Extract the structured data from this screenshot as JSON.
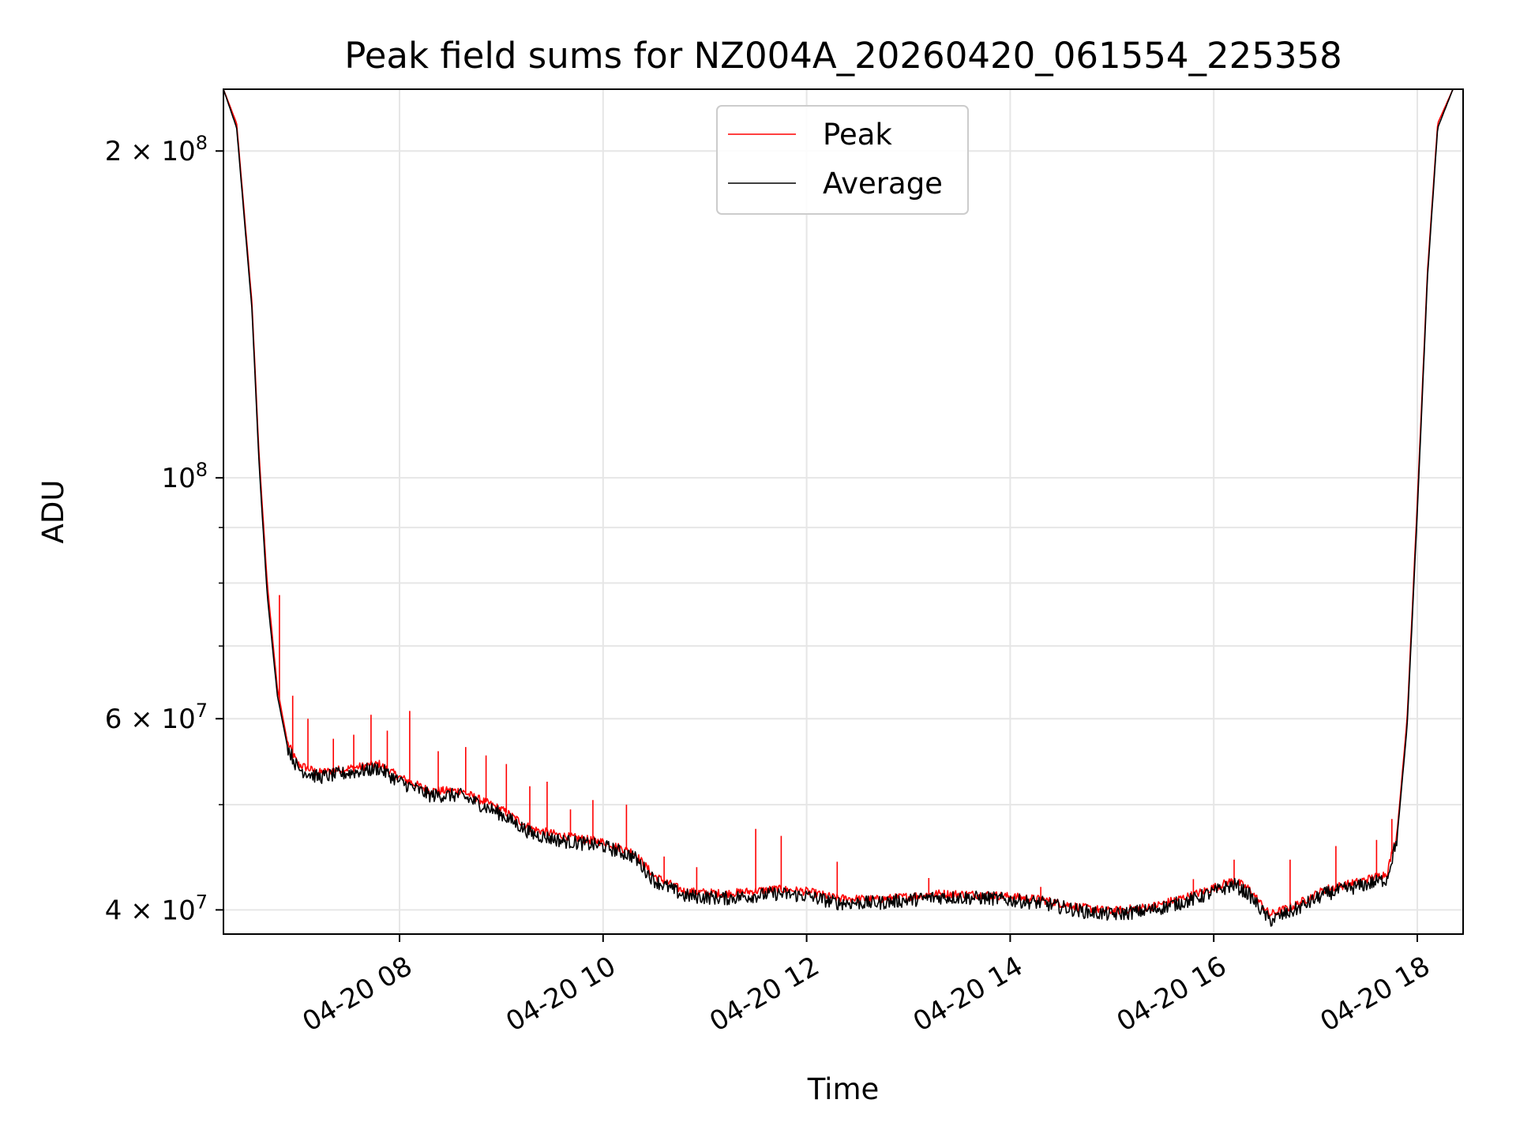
{
  "chart_data": {
    "type": "line",
    "title": "Peak field sums for NZ004A_20260420_061554_225358",
    "xlabel": "Time",
    "ylabel": "ADU",
    "yscale": "log",
    "grid": true,
    "legend_position": "top-center",
    "xlim_hours": [
      6.27,
      18.45
    ],
    "ylim": [
      38000000,
      228000000
    ],
    "x_ticks": [
      {
        "hour": 8,
        "label": "04-20 08"
      },
      {
        "hour": 10,
        "label": "04-20 10"
      },
      {
        "hour": 12,
        "label": "04-20 12"
      },
      {
        "hour": 14,
        "label": "04-20 14"
      },
      {
        "hour": 16,
        "label": "04-20 16"
      },
      {
        "hour": 18,
        "label": "04-20 18"
      }
    ],
    "y_major_ticks": [
      {
        "value": 40000000,
        "mantissa": "4",
        "exponent": "7"
      },
      {
        "value": 60000000,
        "mantissa": "6",
        "exponent": "7"
      },
      {
        "value": 100000000,
        "mantissa": "",
        "exponent": "8"
      },
      {
        "value": 200000000,
        "mantissa": "2",
        "exponent": "8"
      }
    ],
    "y_minor_ticks": [
      50000000,
      70000000,
      80000000,
      90000000
    ],
    "series": [
      {
        "name": "Peak",
        "color": "#ff0000",
        "points": [
          [
            6.27,
            228000000
          ],
          [
            6.4,
            212000000
          ],
          [
            6.55,
            145000000
          ],
          [
            6.62,
            105000000
          ],
          [
            6.7,
            80000000
          ],
          [
            6.8,
            64000000
          ],
          [
            6.9,
            57000000
          ],
          [
            7.0,
            54500000
          ],
          [
            7.2,
            53500000
          ],
          [
            7.5,
            54000000
          ],
          [
            7.8,
            54500000
          ],
          [
            8.0,
            53000000
          ],
          [
            8.3,
            51500000
          ],
          [
            8.6,
            51500000
          ],
          [
            9.0,
            49500000
          ],
          [
            9.3,
            47500000
          ],
          [
            9.6,
            46800000
          ],
          [
            10.0,
            46200000
          ],
          [
            10.3,
            45200000
          ],
          [
            10.5,
            43000000
          ],
          [
            10.8,
            41600000
          ],
          [
            11.2,
            41400000
          ],
          [
            11.7,
            41800000
          ],
          [
            12.0,
            41600000
          ],
          [
            12.3,
            41000000
          ],
          [
            12.7,
            40900000
          ],
          [
            13.3,
            41400000
          ],
          [
            13.8,
            41300000
          ],
          [
            14.3,
            40900000
          ],
          [
            14.7,
            40200000
          ],
          [
            15.0,
            39900000
          ],
          [
            15.4,
            40300000
          ],
          [
            15.8,
            41300000
          ],
          [
            16.2,
            42600000
          ],
          [
            16.35,
            41800000
          ],
          [
            16.55,
            39600000
          ],
          [
            16.8,
            40400000
          ],
          [
            17.1,
            41800000
          ],
          [
            17.4,
            42400000
          ],
          [
            17.7,
            43200000
          ],
          [
            17.8,
            47000000
          ],
          [
            17.9,
            60000000
          ],
          [
            18.0,
            95000000
          ],
          [
            18.1,
            155000000
          ],
          [
            18.2,
            212000000
          ],
          [
            18.35,
            228000000
          ],
          [
            18.45,
            228000000
          ]
        ],
        "spikes": [
          [
            6.82,
            78000000
          ],
          [
            6.95,
            63000000
          ],
          [
            7.1,
            60000000
          ],
          [
            7.35,
            57500000
          ],
          [
            7.55,
            58000000
          ],
          [
            7.72,
            60500000
          ],
          [
            7.88,
            58500000
          ],
          [
            8.1,
            61000000
          ],
          [
            8.38,
            56000000
          ],
          [
            8.65,
            56500000
          ],
          [
            8.85,
            55500000
          ],
          [
            9.05,
            54500000
          ],
          [
            9.28,
            52000000
          ],
          [
            9.45,
            52500000
          ],
          [
            9.68,
            49500000
          ],
          [
            9.9,
            50500000
          ],
          [
            10.23,
            50000000
          ],
          [
            10.6,
            44800000
          ],
          [
            10.92,
            43800000
          ],
          [
            11.5,
            47500000
          ],
          [
            11.75,
            46800000
          ],
          [
            12.3,
            44300000
          ],
          [
            13.2,
            42800000
          ],
          [
            14.3,
            42000000
          ],
          [
            15.8,
            42700000
          ],
          [
            16.2,
            44500000
          ],
          [
            16.75,
            44500000
          ],
          [
            17.2,
            45800000
          ],
          [
            17.6,
            46400000
          ],
          [
            17.75,
            48500000
          ]
        ]
      },
      {
        "name": "Average",
        "color": "#000000",
        "points": [
          [
            6.27,
            228000000
          ],
          [
            6.4,
            210000000
          ],
          [
            6.55,
            143000000
          ],
          [
            6.62,
            103000000
          ],
          [
            6.7,
            78000000
          ],
          [
            6.8,
            63000000
          ],
          [
            6.9,
            56500000
          ],
          [
            7.0,
            54000000
          ],
          [
            7.2,
            53000000
          ],
          [
            7.5,
            53500000
          ],
          [
            7.8,
            54000000
          ],
          [
            8.0,
            52500000
          ],
          [
            8.3,
            51000000
          ],
          [
            8.6,
            51000000
          ],
          [
            9.0,
            49000000
          ],
          [
            9.3,
            47000000
          ],
          [
            9.6,
            46300000
          ],
          [
            10.0,
            45800000
          ],
          [
            10.3,
            44800000
          ],
          [
            10.5,
            42600000
          ],
          [
            10.8,
            41200000
          ],
          [
            11.2,
            41000000
          ],
          [
            11.7,
            41400000
          ],
          [
            12.0,
            41200000
          ],
          [
            12.3,
            40600000
          ],
          [
            12.7,
            40600000
          ],
          [
            13.3,
            41100000
          ],
          [
            13.8,
            41000000
          ],
          [
            14.3,
            40600000
          ],
          [
            14.7,
            39900000
          ],
          [
            15.0,
            39600000
          ],
          [
            15.4,
            40000000
          ],
          [
            15.8,
            40900000
          ],
          [
            16.2,
            42200000
          ],
          [
            16.35,
            41300000
          ],
          [
            16.55,
            39100000
          ],
          [
            16.8,
            40000000
          ],
          [
            17.1,
            41400000
          ],
          [
            17.4,
            42000000
          ],
          [
            17.7,
            42700000
          ],
          [
            17.8,
            46500000
          ],
          [
            17.9,
            59000000
          ],
          [
            18.0,
            93000000
          ],
          [
            18.1,
            153000000
          ],
          [
            18.2,
            210000000
          ],
          [
            18.35,
            228000000
          ],
          [
            18.45,
            228000000
          ]
        ]
      }
    ]
  }
}
